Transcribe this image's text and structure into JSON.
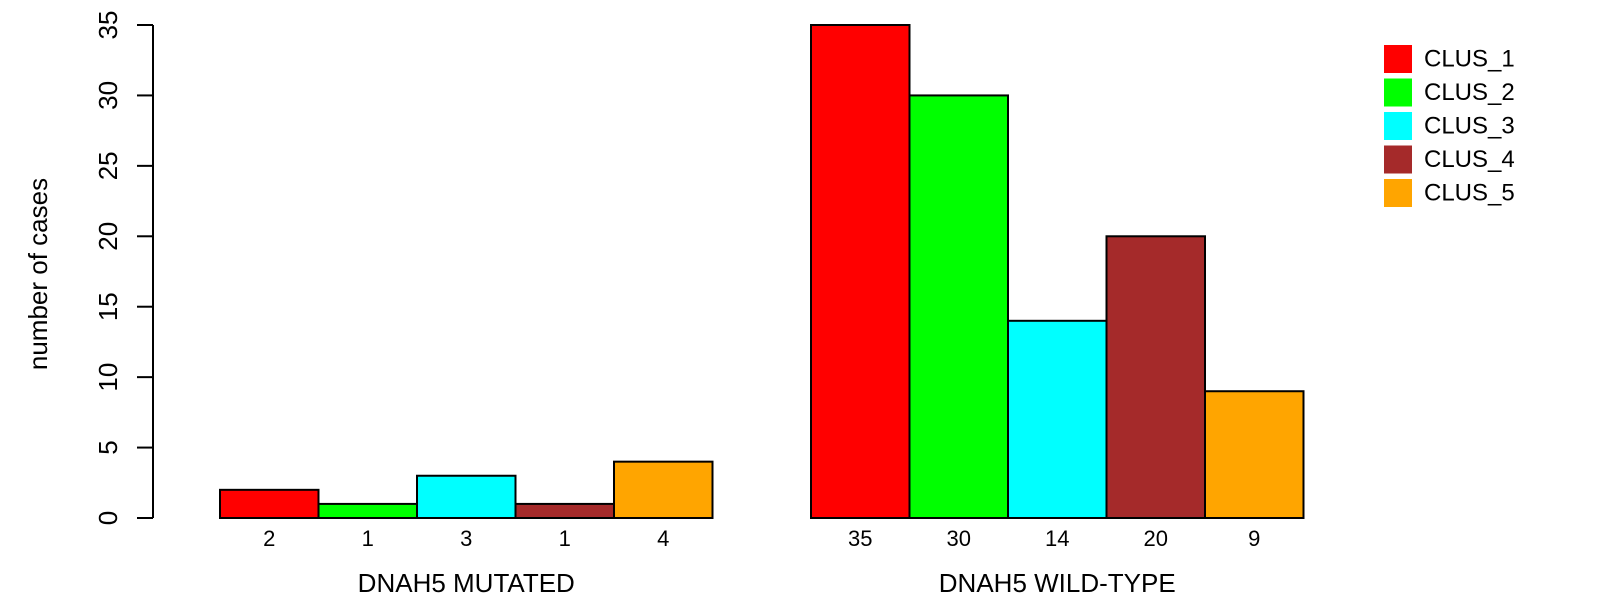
{
  "chart_data": {
    "type": "bar",
    "ylabel": "number of cases",
    "ylim": [
      0,
      35
    ],
    "yticks": [
      0,
      5,
      10,
      15,
      20,
      25,
      30,
      35
    ],
    "groups": [
      {
        "label": "DNAH5 MUTATED",
        "values": [
          2,
          1,
          3,
          1,
          4
        ]
      },
      {
        "label": "DNAH5 WILD-TYPE",
        "values": [
          35,
          30,
          14,
          20,
          9
        ]
      }
    ],
    "series": [
      {
        "name": "CLUS_1",
        "color": "#ff0000"
      },
      {
        "name": "CLUS_2",
        "color": "#00ff00"
      },
      {
        "name": "CLUS_3",
        "color": "#00ffff"
      },
      {
        "name": "CLUS_4",
        "color": "#a52a2a"
      },
      {
        "name": "CLUS_5",
        "color": "#ffa500"
      }
    ],
    "legend_position": "top-right",
    "grid": false
  }
}
